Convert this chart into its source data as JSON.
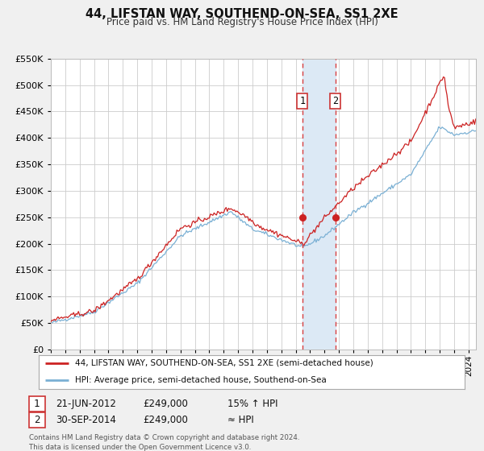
{
  "title": "44, LIFSTAN WAY, SOUTHEND-ON-SEA, SS1 2XE",
  "subtitle": "Price paid vs. HM Land Registry's House Price Index (HPI)",
  "ylim": [
    0,
    550000
  ],
  "yticks": [
    0,
    50000,
    100000,
    150000,
    200000,
    250000,
    300000,
    350000,
    400000,
    450000,
    500000,
    550000
  ],
  "xlim_start": 1995.0,
  "xlim_end": 2024.5,
  "marker1_x": 2012.47,
  "marker1_y": 249000,
  "marker2_x": 2014.75,
  "marker2_y": 249000,
  "vline1_x": 2012.47,
  "vline2_x": 2014.75,
  "shade_color": "#dce9f5",
  "vline_color": "#d94040",
  "legend_label1": "44, LIFSTAN WAY, SOUTHEND-ON-SEA, SS1 2XE (semi-detached house)",
  "legend_label2": "HPI: Average price, semi-detached house, Southend-on-Sea",
  "line1_color": "#cc2222",
  "line2_color": "#7ab0d4",
  "marker_color": "#cc2222",
  "table_row1": [
    "1",
    "21-JUN-2012",
    "£249,000",
    "15% ↑ HPI"
  ],
  "table_row2": [
    "2",
    "30-SEP-2014",
    "£249,000",
    "≈ HPI"
  ],
  "footer": "Contains HM Land Registry data © Crown copyright and database right 2024.\nThis data is licensed under the Open Government Licence v3.0.",
  "background_color": "#f0f0f0",
  "plot_bg_color": "#ffffff",
  "grid_color": "#cccccc"
}
